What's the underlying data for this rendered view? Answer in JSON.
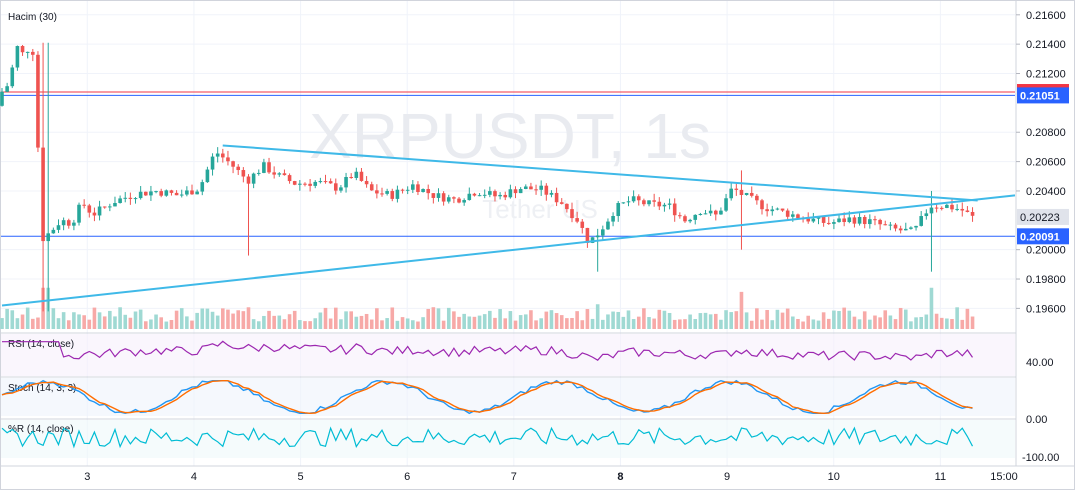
{
  "chart_data": {
    "type": "candlestick",
    "symbol_watermark": "XRPUSDT, 1s",
    "watermark_sub": "Tether US",
    "volume_label": "Hacim (30)",
    "price_axis": {
      "ticks": [
        "0.21600",
        "0.21400",
        "0.21200",
        "0.20800",
        "0.20600",
        "0.20400",
        "0.20000",
        "0.19800",
        "0.19600"
      ],
      "ylim": [
        0.1948,
        0.2166
      ]
    },
    "time_axis": {
      "ticks": [
        "3",
        "4",
        "5",
        "6",
        "7",
        "8",
        "9",
        "10",
        "11",
        "15:00"
      ]
    },
    "price_tags": [
      {
        "value": "0.21074",
        "color": "#f23645",
        "kind": "line"
      },
      {
        "value": "0.21051",
        "color": "#2962ff",
        "kind": "line"
      },
      {
        "value": "0.20223",
        "color": "#e0e3eb",
        "kind": "last"
      },
      {
        "value": "0.20091",
        "color": "#2962ff",
        "kind": "line"
      }
    ],
    "trendlines": [
      {
        "from": {
          "x": 4.27,
          "y": 0.2071
        },
        "to": {
          "x": 11.35,
          "y": 0.20335
        },
        "color": "#3fb9e8"
      },
      {
        "from": {
          "x": 2.2,
          "y": 0.1962
        },
        "to": {
          "x": 11.7,
          "y": 0.2037
        },
        "color": "#3fb9e8"
      }
    ],
    "x_range": [
      2.2,
      11.7
    ],
    "anchors": [
      [
        2.2,
        0.2098
      ],
      [
        2.25,
        0.2108
      ],
      [
        2.3,
        0.2112
      ],
      [
        2.35,
        0.2125
      ],
      [
        2.4,
        0.214
      ],
      [
        2.45,
        0.2132
      ],
      [
        2.5,
        0.2138
      ],
      [
        2.55,
        0.2134
      ],
      [
        2.62,
        0.2007
      ],
      [
        2.7,
        0.2012
      ],
      [
        2.8,
        0.202
      ],
      [
        2.9,
        0.2018
      ],
      [
        3.0,
        0.2032
      ],
      [
        3.1,
        0.2024
      ],
      [
        3.3,
        0.2033
      ],
      [
        3.5,
        0.2038
      ],
      [
        3.7,
        0.204
      ],
      [
        3.9,
        0.2037
      ],
      [
        4.1,
        0.2042
      ],
      [
        4.25,
        0.2067
      ],
      [
        4.4,
        0.2058
      ],
      [
        4.55,
        0.2047
      ],
      [
        4.7,
        0.2057
      ],
      [
        4.85,
        0.205
      ],
      [
        5.0,
        0.2045
      ],
      [
        5.2,
        0.2046
      ],
      [
        5.4,
        0.2042
      ],
      [
        5.55,
        0.2052
      ],
      [
        5.7,
        0.204
      ],
      [
        5.9,
        0.2037
      ],
      [
        6.1,
        0.2044
      ],
      [
        6.3,
        0.2037
      ],
      [
        6.5,
        0.2034
      ],
      [
        6.7,
        0.204
      ],
      [
        6.9,
        0.2036
      ],
      [
        7.1,
        0.2042
      ],
      [
        7.3,
        0.2041
      ],
      [
        7.5,
        0.2032
      ],
      [
        7.65,
        0.202
      ],
      [
        7.75,
        0.2005
      ],
      [
        7.85,
        0.2012
      ],
      [
        8.0,
        0.2028
      ],
      [
        8.15,
        0.2034
      ],
      [
        8.3,
        0.2031
      ],
      [
        8.5,
        0.203
      ],
      [
        8.65,
        0.202
      ],
      [
        8.8,
        0.2027
      ],
      [
        8.95,
        0.2023
      ],
      [
        9.1,
        0.2042
      ],
      [
        9.2,
        0.2037
      ],
      [
        9.4,
        0.2029
      ],
      [
        9.6,
        0.2025
      ],
      [
        9.8,
        0.2021
      ],
      [
        10.0,
        0.2018
      ],
      [
        10.2,
        0.2021
      ],
      [
        10.4,
        0.2019
      ],
      [
        10.6,
        0.2014
      ],
      [
        10.8,
        0.2012
      ],
      [
        10.95,
        0.203
      ],
      [
        11.1,
        0.203
      ],
      [
        11.25,
        0.2027
      ],
      [
        11.35,
        0.2022
      ]
    ],
    "indicators": [
      {
        "label": "RSI (14, close)",
        "axis_label": "40.00",
        "color": "#9c27b0"
      },
      {
        "label": "Stoch (14, 3, 3)",
        "colors": [
          "#2196f3",
          "#ff6d00"
        ]
      },
      {
        "label": "%R (14, close)",
        "axis_labels": [
          "0.00",
          "-100.00"
        ],
        "color": "#00bcd4"
      }
    ],
    "colors": {
      "up": "#26a69a",
      "down": "#ef5350",
      "up_vol": "#9fd9d3",
      "down_vol": "#f7a9a7",
      "grid": "#f0f3fa"
    }
  }
}
